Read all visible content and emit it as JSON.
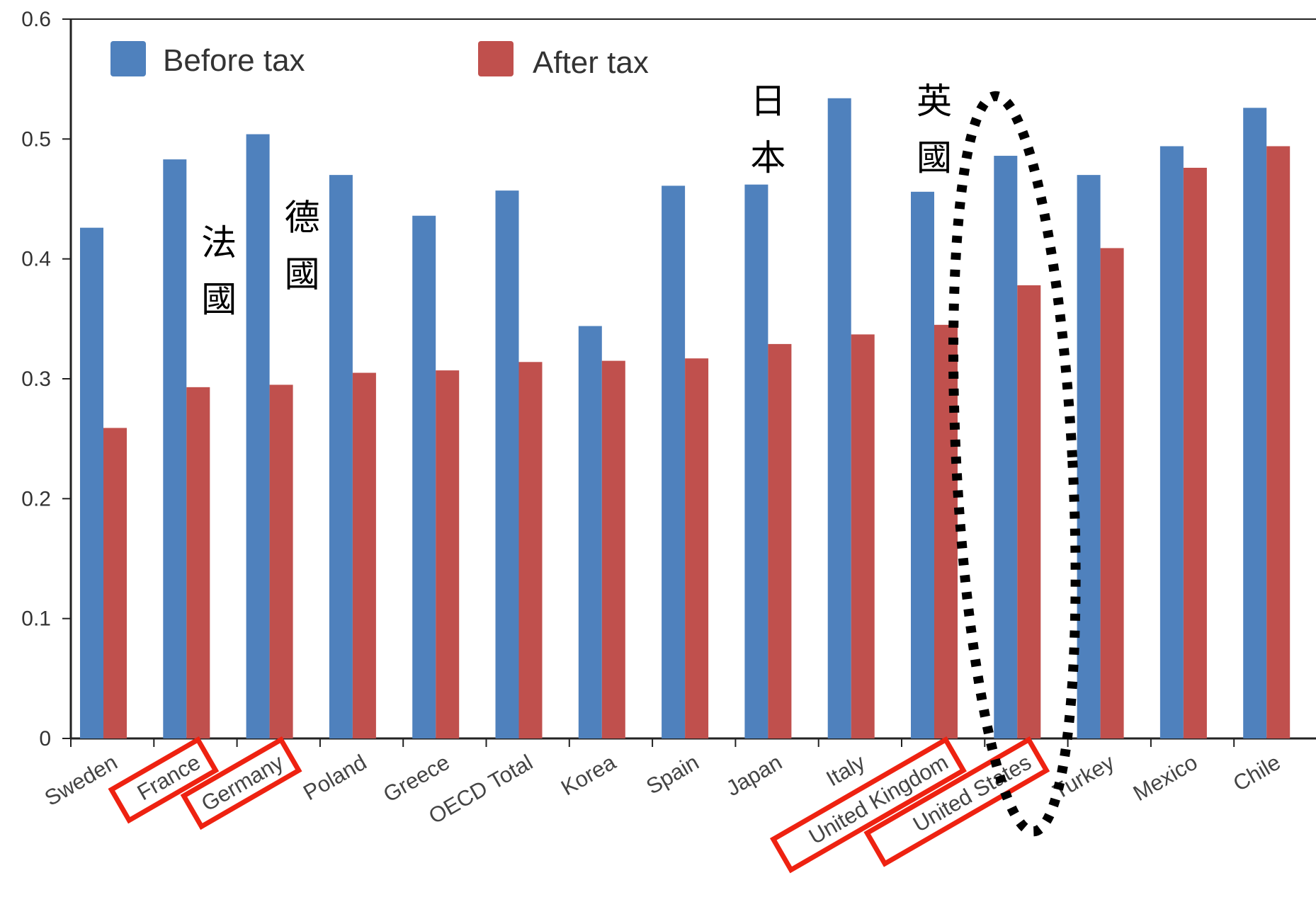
{
  "chart_data": {
    "type": "bar",
    "title": "",
    "xlabel": "",
    "ylabel": "",
    "ylim": [
      0,
      0.6
    ],
    "yticks": [
      "0",
      "0.1",
      "0.2",
      "0.3",
      "0.4",
      "0.5",
      "0.6"
    ],
    "grid": false,
    "legend_position": "top-left",
    "categories": [
      "Sweden",
      "France",
      "Germany",
      "Poland",
      "Greece",
      "OECD Total",
      "Korea",
      "Spain",
      "Japan",
      "Italy",
      "United Kingdom",
      "United States",
      "Turkey",
      "Mexico",
      "Chile"
    ],
    "series": [
      {
        "name": "Before tax",
        "color": "#4f81bd",
        "values": [
          0.426,
          0.483,
          0.504,
          0.47,
          0.436,
          0.457,
          0.344,
          0.461,
          0.462,
          0.534,
          0.456,
          0.486,
          0.47,
          0.494,
          0.526
        ]
      },
      {
        "name": "After tax",
        "color": "#c0504d",
        "values": [
          0.259,
          0.293,
          0.295,
          0.305,
          0.307,
          0.314,
          0.315,
          0.317,
          0.329,
          0.337,
          0.345,
          0.378,
          0.409,
          0.476,
          0.494
        ]
      }
    ],
    "annotations": [
      {
        "category": "France",
        "text": [
          "法",
          "國"
        ]
      },
      {
        "category": "Germany",
        "text": [
          "德",
          "國"
        ]
      },
      {
        "category": "Japan",
        "text": [
          "日",
          "本"
        ]
      },
      {
        "category": "United Kingdom",
        "text": [
          "英",
          "國"
        ]
      }
    ],
    "highlighted_labels": [
      "France",
      "Germany",
      "United Kingdom",
      "United States"
    ],
    "highlight_color": "#ee2211",
    "circled_category": "United States"
  }
}
